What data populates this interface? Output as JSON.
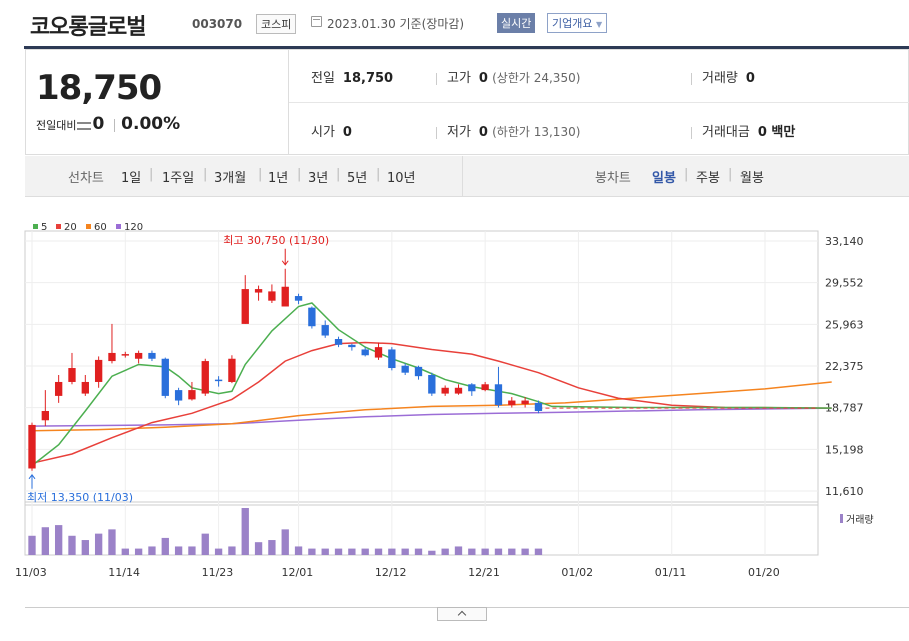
{
  "header": {
    "name": "코오롱글로벌",
    "code": "003070",
    "market": "코스피",
    "date": "2023.01.30 기준(장마감)",
    "realtime": "실시간",
    "corp_info": "기업개요"
  },
  "quote": {
    "price": "18,750",
    "change_label": "전일대비",
    "change": "0",
    "rate": "0.00%",
    "prev_label": "전일",
    "prev": "18,750",
    "high_label": "고가",
    "high": "0",
    "upper_limit": "(상한가 24,350)",
    "volume_label": "거래량",
    "volume": "0",
    "open_label": "시가",
    "open": "0",
    "low_label": "저가",
    "low": "0",
    "lower_limit": "(하한가 13,130)",
    "amount_label": "거래대금",
    "amount": "0 백만"
  },
  "tabs": {
    "line_label": "선차트",
    "line_periods": [
      "1일",
      "1주일",
      "3개월",
      "1년",
      "3년",
      "5년",
      "10년"
    ],
    "candle_label": "봉차트",
    "candle_periods": [
      "일봉",
      "주봉",
      "월봉"
    ],
    "active": "일봉"
  },
  "chart_data": {
    "type": "candlestick",
    "ma_legend": [
      {
        "name": "5",
        "color": "#4caf50"
      },
      {
        "name": "20",
        "color": "#e8403a"
      },
      {
        "name": "60",
        "color": "#f5841f"
      },
      {
        "name": "120",
        "color": "#9b6dd6"
      }
    ],
    "y_ticks": [
      "33,140",
      "29,552",
      "25,963",
      "22,375",
      "18,787",
      "15,198",
      "11,610"
    ],
    "y_range": [
      11610,
      33140
    ],
    "x_ticks": [
      {
        "label": "11/03",
        "i": 0
      },
      {
        "label": "11/14",
        "i": 7
      },
      {
        "label": "11/23",
        "i": 14
      },
      {
        "label": "12/01",
        "i": 20
      },
      {
        "label": "12/12",
        "i": 27
      },
      {
        "label": "12/21",
        "i": 34
      },
      {
        "label": "01/02",
        "i": 41
      },
      {
        "label": "01/11",
        "i": 48
      },
      {
        "label": "01/20",
        "i": 55
      }
    ],
    "slots": 60,
    "candles": [
      {
        "o": 13550,
        "c": 17300,
        "h": 17500,
        "l": 13350
      },
      {
        "o": 17700,
        "c": 18500,
        "h": 20300,
        "l": 17200
      },
      {
        "o": 19800,
        "c": 21000,
        "h": 21600,
        "l": 19200
      },
      {
        "o": 21000,
        "c": 22200,
        "h": 23500,
        "l": 20800
      },
      {
        "o": 20000,
        "c": 21000,
        "h": 21600,
        "l": 19800
      },
      {
        "o": 21000,
        "c": 22900,
        "h": 23200,
        "l": 20500
      },
      {
        "o": 22800,
        "c": 23500,
        "h": 26000,
        "l": 22600
      },
      {
        "o": 23400,
        "c": 23400,
        "h": 23600,
        "l": 23100
      },
      {
        "o": 23000,
        "c": 23500,
        "h": 23700,
        "l": 22600
      },
      {
        "o": 23500,
        "c": 23000,
        "h": 23700,
        "l": 22800
      },
      {
        "o": 23000,
        "c": 19800,
        "h": 23100,
        "l": 19600
      },
      {
        "o": 20300,
        "c": 19400,
        "h": 20500,
        "l": 19000
      },
      {
        "o": 19500,
        "c": 20300,
        "h": 21000,
        "l": 19400
      },
      {
        "o": 20000,
        "c": 22800,
        "h": 23000,
        "l": 19800
      },
      {
        "o": 21200,
        "c": 21100,
        "h": 21500,
        "l": 20600
      },
      {
        "o": 21000,
        "c": 23000,
        "h": 23300,
        "l": 20900
      },
      {
        "o": 26000,
        "c": 29000,
        "h": 30200,
        "l": 26000
      },
      {
        "o": 28700,
        "c": 29000,
        "h": 29300,
        "l": 28000
      },
      {
        "o": 28000,
        "c": 28800,
        "h": 29400,
        "l": 27800
      },
      {
        "o": 27500,
        "c": 29200,
        "h": 30750,
        "l": 27500
      },
      {
        "o": 28400,
        "c": 28000,
        "h": 28600,
        "l": 27700
      },
      {
        "o": 27400,
        "c": 25800,
        "h": 27500,
        "l": 25600
      },
      {
        "o": 25900,
        "c": 25000,
        "h": 26300,
        "l": 24800
      },
      {
        "o": 24700,
        "c": 24200,
        "h": 24900,
        "l": 24000
      },
      {
        "o": 24200,
        "c": 24000,
        "h": 24300,
        "l": 23700
      },
      {
        "o": 23800,
        "c": 23300,
        "h": 24000,
        "l": 23200
      },
      {
        "o": 23100,
        "c": 24000,
        "h": 24400,
        "l": 22900
      },
      {
        "o": 23800,
        "c": 22200,
        "h": 24000,
        "l": 22000
      },
      {
        "o": 22400,
        "c": 21800,
        "h": 22600,
        "l": 21600
      },
      {
        "o": 22300,
        "c": 21500,
        "h": 22400,
        "l": 21200
      },
      {
        "o": 21600,
        "c": 20000,
        "h": 21800,
        "l": 19800
      },
      {
        "o": 20000,
        "c": 20500,
        "h": 20700,
        "l": 19800
      },
      {
        "o": 20000,
        "c": 20500,
        "h": 20800,
        "l": 19900
      },
      {
        "o": 20800,
        "c": 20200,
        "h": 20900,
        "l": 19800
      },
      {
        "o": 20300,
        "c": 20800,
        "h": 21000,
        "l": 20200
      },
      {
        "o": 20800,
        "c": 19000,
        "h": 22300,
        "l": 18800
      },
      {
        "o": 19000,
        "c": 19400,
        "h": 19700,
        "l": 18800
      },
      {
        "o": 19100,
        "c": 19400,
        "h": 19700,
        "l": 18800
      },
      {
        "o": 19200,
        "c": 18500,
        "h": 19400,
        "l": 18300
      }
    ],
    "ma5": [
      [
        0,
        13800
      ],
      [
        2,
        15600
      ],
      [
        4,
        18500
      ],
      [
        6,
        21500
      ],
      [
        8,
        22500
      ],
      [
        10,
        22300
      ],
      [
        11,
        21500
      ],
      [
        12,
        20500
      ],
      [
        14,
        20000
      ],
      [
        15,
        20200
      ],
      [
        16,
        22500
      ],
      [
        18,
        25400
      ],
      [
        20,
        27500
      ],
      [
        21,
        27800
      ],
      [
        23,
        25500
      ],
      [
        25,
        24000
      ],
      [
        27,
        23000
      ],
      [
        29,
        22200
      ],
      [
        31,
        21200
      ],
      [
        33,
        20600
      ],
      [
        36,
        20000
      ],
      [
        38,
        19300
      ],
      [
        39,
        18900
      ],
      [
        45,
        18800
      ],
      [
        55,
        18800
      ],
      [
        60,
        18750
      ]
    ],
    "ma20": [
      [
        0,
        14000
      ],
      [
        3,
        14800
      ],
      [
        6,
        16200
      ],
      [
        9,
        17500
      ],
      [
        12,
        18300
      ],
      [
        15,
        19500
      ],
      [
        17,
        21000
      ],
      [
        19,
        22800
      ],
      [
        21,
        23700
      ],
      [
        23,
        24300
      ],
      [
        25,
        24400
      ],
      [
        27,
        24300
      ],
      [
        30,
        23800
      ],
      [
        33,
        23400
      ],
      [
        35,
        22800
      ],
      [
        38,
        21800
      ],
      [
        41,
        20500
      ],
      [
        44,
        19600
      ],
      [
        48,
        19000
      ],
      [
        52,
        18800
      ],
      [
        56,
        18780
      ],
      [
        60,
        18750
      ]
    ],
    "ma60": [
      [
        0,
        16800
      ],
      [
        5,
        16900
      ],
      [
        10,
        17100
      ],
      [
        15,
        17400
      ],
      [
        20,
        18100
      ],
      [
        25,
        18600
      ],
      [
        30,
        18900
      ],
      [
        35,
        19000
      ],
      [
        40,
        19200
      ],
      [
        45,
        19600
      ],
      [
        50,
        20000
      ],
      [
        55,
        20400
      ],
      [
        60,
        21000
      ]
    ],
    "ma120": [
      [
        0,
        17200
      ],
      [
        10,
        17300
      ],
      [
        15,
        17400
      ],
      [
        20,
        17700
      ],
      [
        25,
        18000
      ],
      [
        30,
        18200
      ],
      [
        35,
        18300
      ],
      [
        40,
        18400
      ],
      [
        50,
        18600
      ],
      [
        60,
        18750
      ]
    ],
    "volume": [
      9,
      13,
      14,
      9,
      7,
      10,
      12,
      3,
      3,
      4,
      8,
      4,
      4,
      10,
      3,
      4,
      22,
      6,
      7,
      12,
      4,
      3,
      3,
      3,
      3,
      3,
      3,
      3,
      3,
      3,
      2,
      3,
      4,
      3,
      3,
      3,
      3,
      3,
      3
    ],
    "max_label": "최고 30,750 (11/30)",
    "max_i": 19,
    "max_v": 30750,
    "min_label": "최저 13,350 (11/03)",
    "min_i": 0,
    "min_v": 13350,
    "last_price": 18750,
    "volume_legend": "거래량"
  }
}
